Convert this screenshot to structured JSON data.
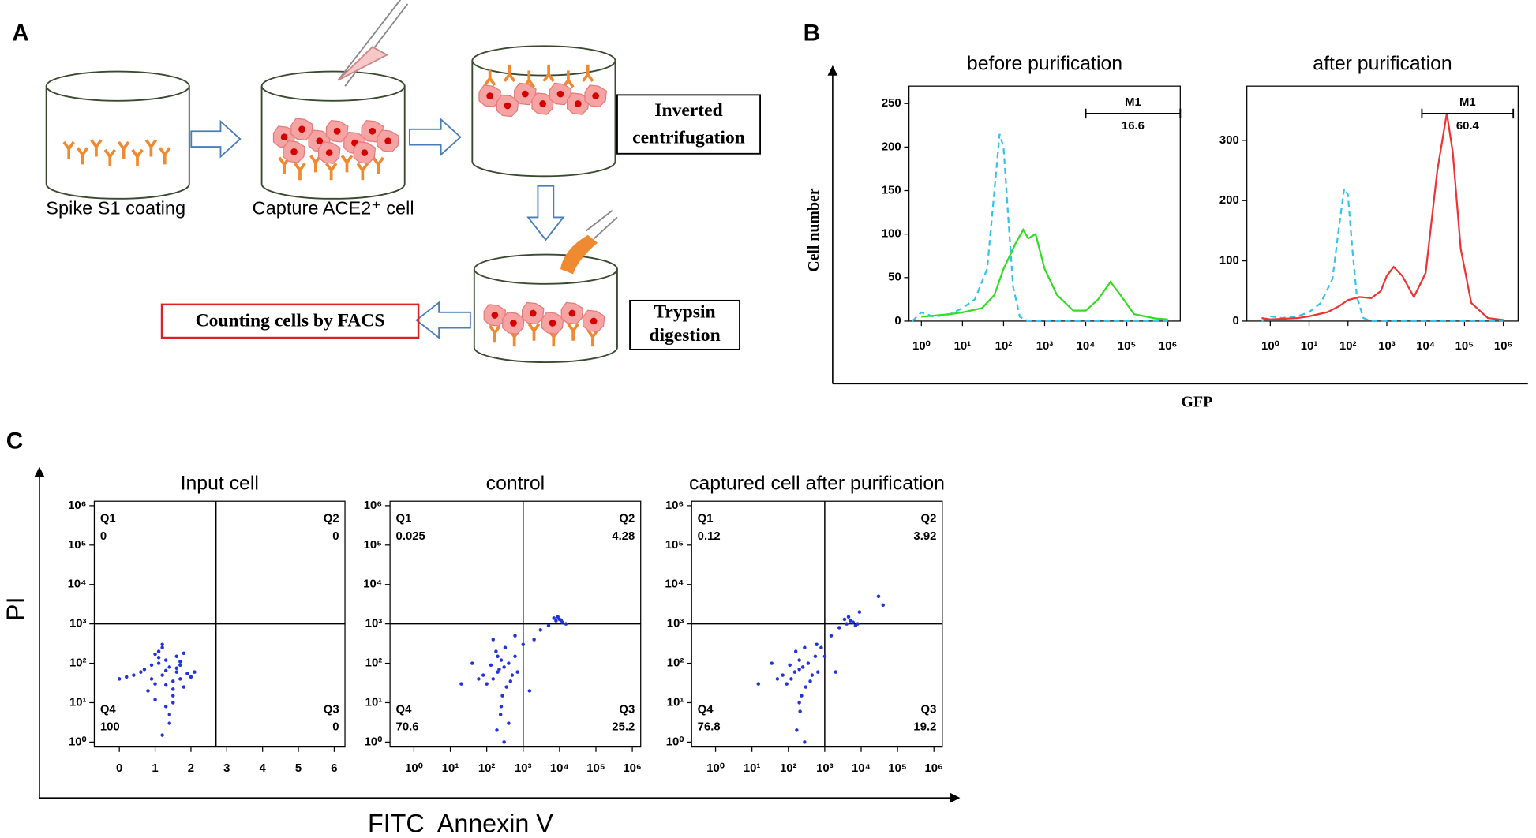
{
  "panel_labels": [
    "A",
    "B",
    "C"
  ],
  "panel_a": {
    "captions": [
      "Spike S1 coating",
      "Capture ACE2⁺ cell"
    ],
    "inverted": [
      "Inverted",
      "centrifugation"
    ],
    "trypsin": [
      "Trypsin",
      "digestion"
    ],
    "facs": "Counting cells by FACS"
  },
  "panel_b": {
    "ylabel": "Cell number",
    "xlabel": "GFP"
  },
  "panel_c": {
    "ylabel": "PI",
    "xlabel": "FITC  Annexin V"
  },
  "chart_data": [
    {
      "type": "line",
      "title": "before purification",
      "x_scale": "log",
      "xlim": [
        0.5,
        2000000
      ],
      "xticks": [
        {
          "value": 1,
          "label": "10⁰"
        },
        {
          "value": 10,
          "label": "10¹"
        },
        {
          "value": 100,
          "label": "10²"
        },
        {
          "value": 1000,
          "label": "10³"
        },
        {
          "value": 10000,
          "label": "10⁴"
        },
        {
          "value": 100000,
          "label": "10⁵"
        },
        {
          "value": 1000000,
          "label": "10⁶"
        }
      ],
      "ylim": [
        0,
        270
      ],
      "yticks": [
        0,
        50,
        100,
        150,
        200,
        250
      ],
      "series": [
        {
          "color": "#33c4ee",
          "dash": true,
          "x": [
            0.6,
            1,
            2,
            5,
            10,
            20,
            40,
            60,
            80,
            100,
            130,
            170,
            250,
            400,
            1000,
            10000,
            1000000
          ],
          "values": [
            0,
            10,
            5,
            8,
            15,
            25,
            60,
            150,
            215,
            200,
            120,
            40,
            5,
            0,
            0,
            0,
            0
          ]
        },
        {
          "color": "#33dd22",
          "dash": false,
          "x": [
            1,
            5,
            10,
            30,
            60,
            100,
            200,
            300,
            400,
            600,
            1000,
            2000,
            5000,
            10000,
            20000,
            40000,
            70000,
            150000,
            500000,
            1000000
          ],
          "values": [
            5,
            8,
            10,
            15,
            30,
            60,
            90,
            105,
            95,
            100,
            60,
            30,
            12,
            12,
            25,
            45,
            30,
            8,
            3,
            2
          ]
        }
      ],
      "gate": {
        "label": "M1",
        "range": [
          10000,
          2000000
        ],
        "value": 16.6
      }
    },
    {
      "type": "line",
      "title": "after purification",
      "x_scale": "log",
      "xlim": [
        0.25,
        2400000
      ],
      "xticks": [
        {
          "value": 1,
          "label": "10⁰"
        },
        {
          "value": 10,
          "label": "10¹"
        },
        {
          "value": 100,
          "label": "10²"
        },
        {
          "value": 1000,
          "label": "10³"
        },
        {
          "value": 10000,
          "label": "10⁴"
        },
        {
          "value": 100000,
          "label": "10⁵"
        },
        {
          "value": 1000000,
          "label": "10⁶"
        }
      ],
      "ylim": [
        0,
        390
      ],
      "yticks": [
        0,
        100,
        200,
        300
      ],
      "series": [
        {
          "color": "#33c4ee",
          "dash": true,
          "x": [
            0.6,
            1,
            2,
            5,
            10,
            20,
            40,
            60,
            80,
            100,
            130,
            170,
            250,
            400,
            1000,
            10000,
            1000000
          ],
          "values": [
            0,
            8,
            5,
            8,
            15,
            30,
            70,
            160,
            220,
            210,
            120,
            40,
            5,
            0,
            0,
            0,
            0
          ]
        },
        {
          "color": "#ee3333",
          "dash": false,
          "x": [
            0.6,
            1,
            5,
            10,
            30,
            60,
            100,
            200,
            400,
            700,
            1000,
            1500,
            2500,
            5000,
            10000,
            20000,
            35000,
            50000,
            80000,
            150000,
            400000,
            1000000
          ],
          "values": [
            5,
            3,
            5,
            8,
            15,
            25,
            35,
            40,
            38,
            50,
            75,
            90,
            75,
            40,
            80,
            250,
            345,
            280,
            120,
            30,
            5,
            2
          ]
        }
      ],
      "gate": {
        "label": "M1",
        "range": [
          8000,
          1800000
        ],
        "value": 60.4
      }
    },
    {
      "type": "scatter",
      "title": "Input cell",
      "x_scale": "linear",
      "xlim": [
        -0.7,
        6.3
      ],
      "xticks": [
        0,
        1,
        2,
        3,
        4,
        5,
        6
      ],
      "y_scale": "log",
      "ylim": [
        0.75,
        1300000
      ],
      "yticks": [
        {
          "value": 1,
          "label": "10⁰"
        },
        {
          "value": 10,
          "label": "10¹"
        },
        {
          "value": 100,
          "label": "10²"
        },
        {
          "value": 1000,
          "label": "10³"
        },
        {
          "value": 10000,
          "label": "10⁴"
        },
        {
          "value": 100000,
          "label": "10⁵"
        },
        {
          "value": 1000000,
          "label": "10⁶"
        }
      ],
      "quadrant_lines": {
        "x": 2.7,
        "y": 1000
      },
      "quadrants": [
        {
          "name": "Q1",
          "value": 0
        },
        {
          "name": "Q2",
          "value": 0
        },
        {
          "name": "Q3",
          "value": 0
        },
        {
          "name": "Q4",
          "value": 100
        }
      ],
      "color": "#2233dd",
      "x": [
        1.2,
        1.4,
        1.0,
        1.6,
        1.3,
        0.9,
        1.8,
        1.1,
        1.5,
        1.7,
        0.7,
        2.0,
        1.3,
        1.2,
        1.6,
        0.8,
        1.9,
        1.4,
        1.1,
        1.5,
        0.6,
        1.0,
        1.3,
        1.7,
        1.2,
        0.4,
        0.2,
        0.0,
        1.8,
        1.5,
        1.4,
        1.6,
        1.1,
        0.9,
        1.3,
        2.1,
        1.2,
        1.5,
        1.0,
        1.7
      ],
      "values": [
        50,
        80,
        30,
        60,
        120,
        40,
        25,
        200,
        15,
        90,
        70,
        45,
        8,
        300,
        150,
        20,
        55,
        5,
        100,
        35,
        60,
        12,
        65,
        40,
        250,
        50,
        45,
        40,
        180,
        10,
        3,
        75,
        140,
        90,
        28,
        60,
        1.5,
        22,
        170,
        110
      ]
    },
    {
      "type": "scatter",
      "title": "control",
      "x_scale": "log",
      "xlim": [
        0.22,
        1700000
      ],
      "xticks": [
        {
          "value": 1,
          "label": "10⁰"
        },
        {
          "value": 10,
          "label": "10¹"
        },
        {
          "value": 100,
          "label": "10²"
        },
        {
          "value": 1000,
          "label": "10³"
        },
        {
          "value": 10000,
          "label": "10⁴"
        },
        {
          "value": 100000,
          "label": "10⁵"
        },
        {
          "value": 1000000,
          "label": "10⁶"
        }
      ],
      "y_scale": "log",
      "ylim": [
        0.75,
        1300000
      ],
      "yticks": [
        {
          "value": 1,
          "label": "10⁰"
        },
        {
          "value": 10,
          "label": "10¹"
        },
        {
          "value": 100,
          "label": "10²"
        },
        {
          "value": 1000,
          "label": "10³"
        },
        {
          "value": 10000,
          "label": "10⁴"
        },
        {
          "value": 100000,
          "label": "10⁵"
        },
        {
          "value": 1000000,
          "label": "10⁶"
        }
      ],
      "quadrant_lines": {
        "x": 1000,
        "y": 1000
      },
      "quadrants": [
        {
          "name": "Q1",
          "value": 0.025
        },
        {
          "name": "Q2",
          "value": 4.28
        },
        {
          "name": "Q3",
          "value": 25.2
        },
        {
          "name": "Q4",
          "value": 70.6
        }
      ],
      "color": "#2233dd",
      "x": [
        200,
        300,
        150,
        400,
        250,
        100,
        500,
        180,
        350,
        220,
        80,
        600,
        270,
        130,
        450,
        320,
        60,
        700,
        240,
        190,
        1000,
        2000,
        3000,
        5000,
        8000,
        10000,
        12000,
        9000,
        15000,
        7000,
        11000,
        300,
        250,
        40,
        20,
        400,
        200,
        150,
        1500,
        600
      ],
      "values": [
        60,
        80,
        40,
        100,
        120,
        30,
        50,
        200,
        25,
        70,
        50,
        150,
        15,
        90,
        35,
        250,
        40,
        60,
        5,
        2,
        300,
        400,
        700,
        900,
        1200,
        1300,
        1100,
        1500,
        1000,
        1400,
        1250,
        1,
        8,
        100,
        30,
        3,
        150,
        400,
        20,
        500
      ]
    },
    {
      "type": "scatter",
      "title": "captured cell after purification",
      "x_scale": "log",
      "xlim": [
        0.22,
        1700000
      ],
      "xticks": [
        {
          "value": 1,
          "label": "10⁰"
        },
        {
          "value": 10,
          "label": "10¹"
        },
        {
          "value": 100,
          "label": "10²"
        },
        {
          "value": 1000,
          "label": "10³"
        },
        {
          "value": 10000,
          "label": "10⁴"
        },
        {
          "value": 100000,
          "label": "10⁵"
        },
        {
          "value": 1000000,
          "label": "10⁶"
        }
      ],
      "y_scale": "log",
      "ylim": [
        0.75,
        1300000
      ],
      "yticks": [
        {
          "value": 1,
          "label": "10⁰"
        },
        {
          "value": 10,
          "label": "10¹"
        },
        {
          "value": 100,
          "label": "10²"
        },
        {
          "value": 1000,
          "label": "10³"
        },
        {
          "value": 10000,
          "label": "10⁴"
        },
        {
          "value": 100000,
          "label": "10⁵"
        },
        {
          "value": 1000000,
          "label": "10⁶"
        }
      ],
      "quadrant_lines": {
        "x": 1000,
        "y": 1000
      },
      "quadrants": [
        {
          "name": "Q1",
          "value": 0.12
        },
        {
          "name": "Q2",
          "value": 3.92
        },
        {
          "name": "Q3",
          "value": 19.2
        },
        {
          "name": "Q4",
          "value": 76.8
        }
      ],
      "color": "#2233dd",
      "x": [
        150,
        250,
        120,
        350,
        200,
        90,
        450,
        160,
        300,
        200,
        70,
        550,
        230,
        110,
        400,
        280,
        50,
        650,
        210,
        170,
        800,
        1500,
        2500,
        4000,
        5000,
        6000,
        7000,
        3500,
        8000,
        4500,
        30000,
        280,
        200,
        35,
        15,
        1000,
        600,
        40000,
        2000,
        9000
      ],
      "values": [
        60,
        80,
        40,
        100,
        120,
        30,
        50,
        200,
        25,
        70,
        50,
        150,
        15,
        90,
        35,
        250,
        40,
        60,
        6,
        2,
        250,
        500,
        800,
        1000,
        1200,
        1100,
        900,
        1300,
        1000,
        1500,
        5000,
        1,
        10,
        100,
        30,
        150,
        300,
        3000,
        60,
        2000
      ]
    }
  ]
}
